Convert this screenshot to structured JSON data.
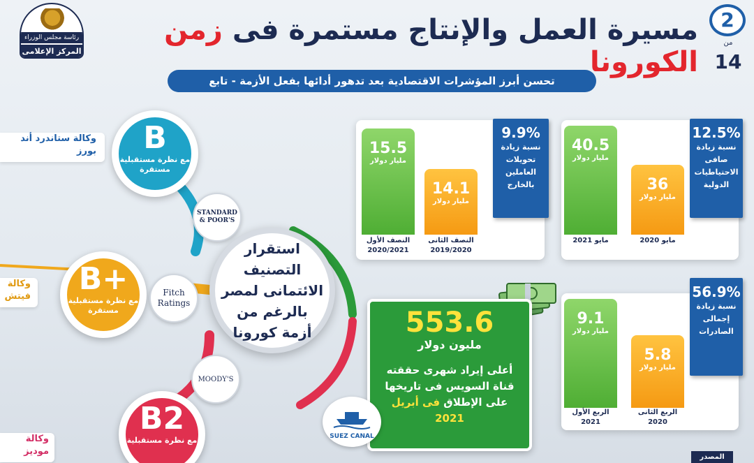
{
  "header": {
    "title_main": "مسيرة العمل والإنتاج مستمرة فى",
    "title_accent": "زمن الكورونا",
    "subtitle": "تحسن أبرز المؤشرات الاقتصادية بعد تدهور أدائها بفعل الأزمة - تابع",
    "page_number": "2",
    "page_of": "من",
    "page_total": "14"
  },
  "logo": {
    "line1": "رئاسة مجلس الوزراء",
    "line2": "المركز الإعلامى"
  },
  "ratings": {
    "center_text": "استقرار التصنيف الائتمانى لمصر بالرغم من أزمة كورونا",
    "items": [
      {
        "agency": "وكالة ستاندرد أند بورز",
        "grade": "B",
        "outlook": "مع نظرة مستقبلية مستقرة",
        "logo_text": "STANDARD & POOR'S",
        "color": "#1fa3c8"
      },
      {
        "agency": "وكالة فيتش",
        "grade": "B+",
        "outlook": "مع نظرة مستقبلية مستقرة",
        "logo_text": "Fitch Ratings",
        "color": "#f0a81c"
      },
      {
        "agency": "وكالة موديز",
        "grade": "B2",
        "outlook": "مع نظرة مستقبلية",
        "logo_text": "MOODY'S",
        "color": "#e0304f"
      }
    ]
  },
  "cards": {
    "remittances": {
      "tag_pct": "9.9%",
      "tag_desc": "نسبة زيادة تحويلات العاملين بالخارج",
      "bar1": {
        "value": "15.5",
        "unit": "مليار دولار",
        "label": "النصف الأول 2020/2021"
      },
      "bar2": {
        "value": "14.1",
        "unit": "مليار دولار",
        "label": "النصف الثانى 2019/2020"
      }
    },
    "reserves": {
      "tag_pct": "12.5%",
      "tag_desc": "نسبة زيادة صافى الاحتياطيات الدولية",
      "bar1": {
        "value": "40.5",
        "unit": "مليار دولار",
        "label": "مايو 2021"
      },
      "bar2": {
        "value": "36",
        "unit": "مليار دولار",
        "label": "مايو 2020"
      }
    },
    "exports": {
      "tag_pct": "56.9%",
      "tag_desc": "نسبة زيادة إجمالى الصادرات",
      "bar1": {
        "value": "9.1",
        "unit": "مليار دولار",
        "label": "الربع الأول 2021"
      },
      "bar2": {
        "value": "5.8",
        "unit": "مليار دولار",
        "label": "الربع الثانى 2020"
      }
    }
  },
  "suez": {
    "value": "553.6",
    "unit": "مليون دولار",
    "desc_prefix": "أعلى إيراد شهرى حققته قناة السويس فى تاريخها على الإطلاق",
    "desc_highlight": "فى أبريل 2021",
    "logo_text": "SUEZ CANAL"
  },
  "footer": {
    "source_label": "المصدر"
  }
}
